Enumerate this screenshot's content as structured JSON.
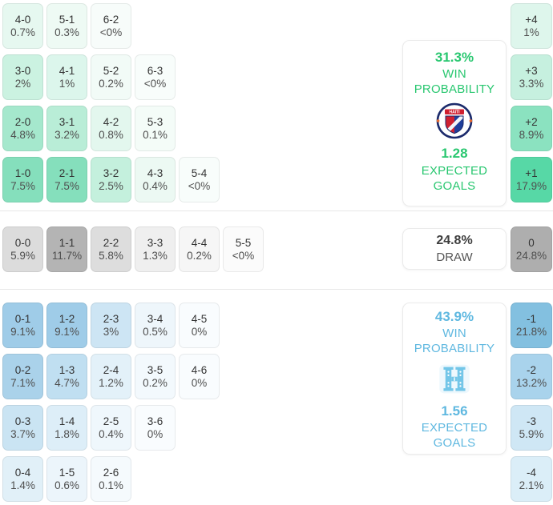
{
  "colors": {
    "home_accent": "#29c770",
    "away_accent": "#5fb8e0",
    "draw_text": "#3e3e3e",
    "divider": "#e7e7e7"
  },
  "panels": {
    "home": {
      "win_probability": "31.3%",
      "win_label": "WIN PROBABILITY",
      "expected_goals": "1.28",
      "eg_label": "EXPECTED GOALS",
      "badge": "haiti-crest",
      "badge_text": "HAITI"
    },
    "draw": {
      "probability": "24.8%",
      "label": "DRAW"
    },
    "away": {
      "win_probability": "43.9%",
      "win_label": "WIN PROBABILITY",
      "expected_goals": "1.56",
      "eg_label": "EXPECTED GOALS",
      "badge": "honduras-h-monogram"
    }
  },
  "grid": {
    "sections": [
      {
        "name": "home-win",
        "rows": [
          {
            "cells": [
              {
                "label": "4-0",
                "pct": "0.7%",
                "bg": "#e6f8f0"
              },
              {
                "label": "5-1",
                "pct": "0.3%",
                "bg": "#eefaf4"
              },
              {
                "label": "6-2",
                "pct": "<0%",
                "bg": "#f7fcfa"
              }
            ],
            "right": {
              "label": "+4",
              "pct": "1%",
              "bg": "#def6ec"
            }
          },
          {
            "cells": [
              {
                "label": "3-0",
                "pct": "2%",
                "bg": "#cbf2e1"
              },
              {
                "label": "4-1",
                "pct": "1%",
                "bg": "#dcf6ec"
              },
              {
                "label": "5-2",
                "pct": "0.2%",
                "bg": "#f2fbf7"
              },
              {
                "label": "6-3",
                "pct": "<0%",
                "bg": "#f8fdfb"
              }
            ],
            "right": {
              "label": "+3",
              "pct": "3.3%",
              "bg": "#c6f0df"
            }
          },
          {
            "cells": [
              {
                "label": "2-0",
                "pct": "4.8%",
                "bg": "#a5e8cd"
              },
              {
                "label": "3-1",
                "pct": "3.2%",
                "bg": "#b9edd7"
              },
              {
                "label": "4-2",
                "pct": "0.8%",
                "bg": "#e3f7ee"
              },
              {
                "label": "5-3",
                "pct": "0.1%",
                "bg": "#f4fcf8"
              }
            ],
            "right": {
              "label": "+2",
              "pct": "8.9%",
              "bg": "#8be2c0"
            }
          },
          {
            "cells": [
              {
                "label": "1-0",
                "pct": "7.5%",
                "bg": "#85dfbc"
              },
              {
                "label": "2-1",
                "pct": "7.5%",
                "bg": "#85dfbc"
              },
              {
                "label": "3-2",
                "pct": "2.5%",
                "bg": "#c4f0dd"
              },
              {
                "label": "4-3",
                "pct": "0.4%",
                "bg": "#ecf9f3"
              },
              {
                "label": "5-4",
                "pct": "<0%",
                "bg": "#f8fdfb"
              }
            ],
            "right": {
              "label": "+1",
              "pct": "17.9%",
              "bg": "#57d8a6"
            }
          }
        ]
      },
      {
        "name": "draw",
        "rows": [
          {
            "cells": [
              {
                "label": "0-0",
                "pct": "5.9%",
                "bg": "#dcdcdc"
              },
              {
                "label": "1-1",
                "pct": "11.7%",
                "bg": "#b4b4b4"
              },
              {
                "label": "2-2",
                "pct": "5.8%",
                "bg": "#dddddd"
              },
              {
                "label": "3-3",
                "pct": "1.3%",
                "bg": "#efefef"
              },
              {
                "label": "4-4",
                "pct": "0.2%",
                "bg": "#f6f6f6"
              },
              {
                "label": "5-5",
                "pct": "<0%",
                "bg": "#fbfbfb"
              }
            ],
            "right": {
              "label": "0",
              "pct": "24.8%",
              "bg": "#aeaeae"
            }
          }
        ]
      },
      {
        "name": "away-win",
        "rows": [
          {
            "cells": [
              {
                "label": "0-1",
                "pct": "9.1%",
                "bg": "#9fcce8"
              },
              {
                "label": "1-2",
                "pct": "9.1%",
                "bg": "#9fcce8"
              },
              {
                "label": "2-3",
                "pct": "3%",
                "bg": "#cde5f4"
              },
              {
                "label": "3-4",
                "pct": "0.5%",
                "bg": "#eef6fb"
              },
              {
                "label": "4-5",
                "pct": "0%",
                "bg": "#f9fcfe"
              }
            ],
            "right": {
              "label": "-1",
              "pct": "21.8%",
              "bg": "#83c0e0"
            }
          },
          {
            "cells": [
              {
                "label": "0-2",
                "pct": "7.1%",
                "bg": "#aad2ea"
              },
              {
                "label": "1-3",
                "pct": "4.7%",
                "bg": "#c0dff1"
              },
              {
                "label": "2-4",
                "pct": "1.2%",
                "bg": "#e3f1f9"
              },
              {
                "label": "3-5",
                "pct": "0.2%",
                "bg": "#f3f9fd"
              },
              {
                "label": "4-6",
                "pct": "0%",
                "bg": "#f9fcfe"
              }
            ],
            "right": {
              "label": "-2",
              "pct": "13.2%",
              "bg": "#a9d3ec"
            }
          },
          {
            "cells": [
              {
                "label": "0-3",
                "pct": "3.7%",
                "bg": "#cae4f3"
              },
              {
                "label": "1-4",
                "pct": "1.8%",
                "bg": "#ddeef8"
              },
              {
                "label": "2-5",
                "pct": "0.4%",
                "bg": "#eff7fc"
              },
              {
                "label": "3-6",
                "pct": "0%",
                "bg": "#f9fcfe"
              }
            ],
            "right": {
              "label": "-3",
              "pct": "5.9%",
              "bg": "#cfe7f5"
            }
          },
          {
            "cells": [
              {
                "label": "0-4",
                "pct": "1.4%",
                "bg": "#e1f0f8"
              },
              {
                "label": "1-5",
                "pct": "0.6%",
                "bg": "#ecf5fb"
              },
              {
                "label": "2-6",
                "pct": "0.1%",
                "bg": "#f5fafd"
              }
            ],
            "right": {
              "label": "-4",
              "pct": "2.1%",
              "bg": "#dbeef8"
            }
          }
        ]
      }
    ]
  },
  "chart_data": {
    "type": "heatmap",
    "title": "Correct score probability matrix with win/draw probabilities and expected goals",
    "legend_position": "right",
    "home": {
      "win_probability_pct": 31.3,
      "expected_goals": 1.28,
      "team_badge": "Haiti crest",
      "scores": [
        [
          "4-0",
          0.7
        ],
        [
          "5-1",
          0.3
        ],
        [
          "6-2",
          "<0"
        ],
        [
          "3-0",
          2
        ],
        [
          "4-1",
          1
        ],
        [
          "5-2",
          0.2
        ],
        [
          "6-3",
          "<0"
        ],
        [
          "2-0",
          4.8
        ],
        [
          "3-1",
          3.2
        ],
        [
          "4-2",
          0.8
        ],
        [
          "5-3",
          0.1
        ],
        [
          "1-0",
          7.5
        ],
        [
          "2-1",
          7.5
        ],
        [
          "3-2",
          2.5
        ],
        [
          "4-3",
          0.4
        ],
        [
          "5-4",
          "<0"
        ]
      ],
      "goal_difference": [
        [
          "+4",
          1
        ],
        [
          "+3",
          3.3
        ],
        [
          "+2",
          8.9
        ],
        [
          "+1",
          17.9
        ]
      ]
    },
    "draw": {
      "probability_pct": 24.8,
      "scores": [
        [
          "0-0",
          5.9
        ],
        [
          "1-1",
          11.7
        ],
        [
          "2-2",
          5.8
        ],
        [
          "3-3",
          1.3
        ],
        [
          "4-4",
          0.2
        ],
        [
          "5-5",
          "<0"
        ]
      ],
      "goal_difference": [
        [
          "0",
          24.8
        ]
      ]
    },
    "away": {
      "win_probability_pct": 43.9,
      "expected_goals": 1.56,
      "team_badge": "Honduras H monogram",
      "scores": [
        [
          "0-1",
          9.1
        ],
        [
          "1-2",
          9.1
        ],
        [
          "2-3",
          3
        ],
        [
          "3-4",
          0.5
        ],
        [
          "4-5",
          0
        ],
        [
          "0-2",
          7.1
        ],
        [
          "1-3",
          4.7
        ],
        [
          "2-4",
          1.2
        ],
        [
          "3-5",
          0.2
        ],
        [
          "4-6",
          0
        ],
        [
          "0-3",
          3.7
        ],
        [
          "1-4",
          1.8
        ],
        [
          "2-5",
          0.4
        ],
        [
          "3-6",
          0
        ],
        [
          "0-4",
          1.4
        ],
        [
          "1-5",
          0.6
        ],
        [
          "2-6",
          0.1
        ]
      ],
      "goal_difference": [
        [
          "-1",
          21.8
        ],
        [
          "-2",
          13.2
        ],
        [
          "-3",
          5.9
        ],
        [
          "-4",
          2.1
        ]
      ]
    }
  }
}
